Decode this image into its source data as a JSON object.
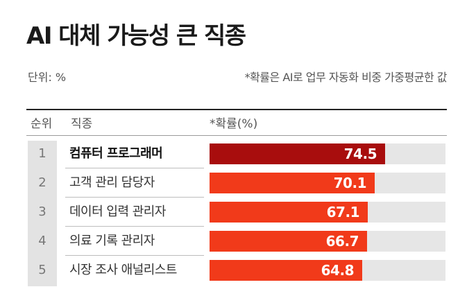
{
  "title": "AI 대체 가능성 큰 직종",
  "unit_label": "단위: %",
  "note": "*확률은 AI로 업무 자동화 비중 가중평균한 값",
  "columns": {
    "rank": "순위",
    "job": "직종",
    "prob": "*확률(%)"
  },
  "chart_data": {
    "type": "bar",
    "orientation": "horizontal",
    "title": "AI 대체 가능성 큰 직종",
    "unit": "%",
    "ranks": [
      "1",
      "2",
      "3",
      "4",
      "5"
    ],
    "categories": [
      "컴퓨터 프로그래머",
      "고객 관리 담당자",
      "데이터 입력 관리자",
      "의료 기록 관리자",
      "시장 조사 애널리스트"
    ],
    "values": [
      74.5,
      70.1,
      67.1,
      66.7,
      64.8
    ],
    "value_labels": [
      "74.5",
      "70.1",
      "67.1",
      "66.7",
      "64.8"
    ],
    "xlim": [
      0,
      100
    ],
    "highlight_index": 0,
    "colors": {
      "highlight": "#a80d0d",
      "bar": "#f13a1a",
      "track": "#e6e6e6"
    }
  }
}
